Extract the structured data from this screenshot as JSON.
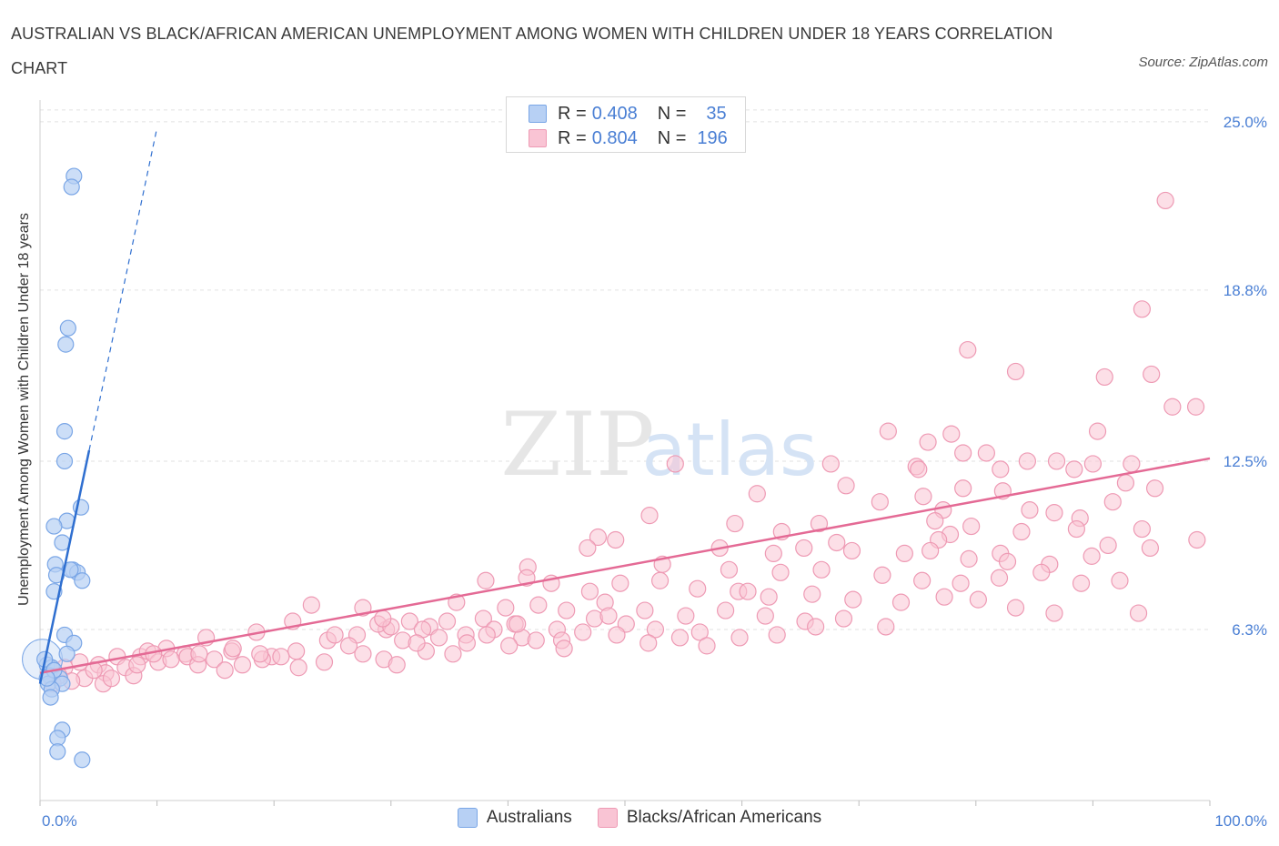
{
  "title": "AUSTRALIAN VS BLACK/AFRICAN AMERICAN UNEMPLOYMENT AMONG WOMEN WITH CHILDREN UNDER 18 YEARS CORRELATION CHART",
  "source": "Source: ZipAtlas.com",
  "watermark": {
    "zip": "ZIP",
    "atlas": "atlas"
  },
  "colors": {
    "blue_fill": "#b7d0f4",
    "blue_stroke": "#7aa6e6",
    "blue_line": "#2f6fd0",
    "pink_fill": "#f9c4d4",
    "pink_stroke": "#ee9ab4",
    "pink_line": "#e46a95",
    "axis_label": "#4a7fd4",
    "grid": "#e2e2e2"
  },
  "legend": {
    "australians": {
      "r_key": "R =",
      "r_value": "0.408",
      "n_key": "N =",
      "n_value": "35"
    },
    "blacks": {
      "r_key": "R =",
      "r_value": "0.804",
      "n_key": "N =",
      "n_value": "196"
    }
  },
  "chart_data": {
    "type": "scatter",
    "xlabel": "",
    "ylabel": "Unemployment Among Women with Children Under 18 years",
    "xlim": [
      0,
      100
    ],
    "ylim": [
      0,
      25.8
    ],
    "y_ticks": [
      {
        "value": 6.3,
        "label": "6.3%"
      },
      {
        "value": 12.5,
        "label": "12.5%"
      },
      {
        "value": 18.8,
        "label": "18.8%"
      },
      {
        "value": 25.0,
        "label": "25.0%"
      }
    ],
    "x_tick_labels": {
      "min": "0.0%",
      "max": "100.0%"
    },
    "grid": true,
    "legend_position": "bottom-center",
    "series": [
      {
        "name": "Australians",
        "trend": {
          "x0": 0.0,
          "y0": 4.3,
          "x1": 4.2,
          "y1": 12.9,
          "dashed_to_x": 10.0
        },
        "points": [
          [
            2.9,
            23.0
          ],
          [
            2.7,
            22.6
          ],
          [
            2.4,
            17.4
          ],
          [
            2.2,
            16.8
          ],
          [
            2.1,
            13.6
          ],
          [
            2.1,
            12.5
          ],
          [
            3.5,
            10.8
          ],
          [
            2.3,
            10.3
          ],
          [
            1.2,
            10.1
          ],
          [
            1.9,
            9.5
          ],
          [
            1.3,
            8.7
          ],
          [
            2.8,
            8.5
          ],
          [
            3.2,
            8.4
          ],
          [
            1.4,
            8.3
          ],
          [
            3.6,
            8.1
          ],
          [
            1.2,
            7.7
          ],
          [
            2.1,
            6.1
          ],
          [
            2.9,
            5.8
          ],
          [
            2.3,
            5.4
          ],
          [
            0.6,
            5.0
          ],
          [
            1.0,
            4.9
          ],
          [
            0.8,
            4.6
          ],
          [
            1.7,
            4.5
          ],
          [
            0.7,
            4.3
          ],
          [
            1.9,
            4.3
          ],
          [
            1.0,
            4.1
          ],
          [
            0.9,
            3.8
          ],
          [
            1.9,
            2.6
          ],
          [
            1.5,
            2.3
          ],
          [
            1.5,
            1.8
          ],
          [
            3.6,
            1.5
          ],
          [
            0.4,
            5.2
          ],
          [
            1.2,
            4.8
          ],
          [
            2.6,
            8.5
          ],
          [
            0.6,
            4.5
          ]
        ]
      },
      {
        "name": "Blacks/African Americans",
        "trend": {
          "x0": 0.0,
          "y0": 4.7,
          "x1": 100.0,
          "y1": 12.6
        },
        "points": [
          [
            96.2,
            22.1
          ],
          [
            94.2,
            18.1
          ],
          [
            79.3,
            16.6
          ],
          [
            83.4,
            15.8
          ],
          [
            91.0,
            15.6
          ],
          [
            95.0,
            15.7
          ],
          [
            96.8,
            14.5
          ],
          [
            98.8,
            14.5
          ],
          [
            72.5,
            13.6
          ],
          [
            77.9,
            13.5
          ],
          [
            90.4,
            13.6
          ],
          [
            75.9,
            13.2
          ],
          [
            78.9,
            12.8
          ],
          [
            80.9,
            12.8
          ],
          [
            84.4,
            12.5
          ],
          [
            86.9,
            12.5
          ],
          [
            67.6,
            12.4
          ],
          [
            90.0,
            12.4
          ],
          [
            74.9,
            12.3
          ],
          [
            82.1,
            12.2
          ],
          [
            88.4,
            12.2
          ],
          [
            93.3,
            12.4
          ],
          [
            54.3,
            12.4
          ],
          [
            75.1,
            12.2
          ],
          [
            68.9,
            11.6
          ],
          [
            78.9,
            11.5
          ],
          [
            75.5,
            11.2
          ],
          [
            82.3,
            11.4
          ],
          [
            92.8,
            11.7
          ],
          [
            95.3,
            11.5
          ],
          [
            91.7,
            11.0
          ],
          [
            61.3,
            11.3
          ],
          [
            71.8,
            11.0
          ],
          [
            77.2,
            10.7
          ],
          [
            84.6,
            10.7
          ],
          [
            86.7,
            10.6
          ],
          [
            88.9,
            10.4
          ],
          [
            52.1,
            10.5
          ],
          [
            59.4,
            10.2
          ],
          [
            66.6,
            10.2
          ],
          [
            76.5,
            10.3
          ],
          [
            79.6,
            10.1
          ],
          [
            83.9,
            9.9
          ],
          [
            88.6,
            10.0
          ],
          [
            94.2,
            10.0
          ],
          [
            47.7,
            9.7
          ],
          [
            63.4,
            9.9
          ],
          [
            77.8,
            9.8
          ],
          [
            46.8,
            9.3
          ],
          [
            49.2,
            9.6
          ],
          [
            58.1,
            9.3
          ],
          [
            68.1,
            9.5
          ],
          [
            76.8,
            9.6
          ],
          [
            82.1,
            9.1
          ],
          [
            91.3,
            9.4
          ],
          [
            94.9,
            9.3
          ],
          [
            98.9,
            9.6
          ],
          [
            62.7,
            9.1
          ],
          [
            65.3,
            9.3
          ],
          [
            69.4,
            9.2
          ],
          [
            73.9,
            9.1
          ],
          [
            76.1,
            9.2
          ],
          [
            79.4,
            8.9
          ],
          [
            82.7,
            8.8
          ],
          [
            86.3,
            8.7
          ],
          [
            89.9,
            9.0
          ],
          [
            41.7,
            8.6
          ],
          [
            53.2,
            8.7
          ],
          [
            58.9,
            8.5
          ],
          [
            63.3,
            8.4
          ],
          [
            66.8,
            8.5
          ],
          [
            72.0,
            8.3
          ],
          [
            75.4,
            8.1
          ],
          [
            78.7,
            8.0
          ],
          [
            82.0,
            8.2
          ],
          [
            85.6,
            8.4
          ],
          [
            89.0,
            8.0
          ],
          [
            92.3,
            8.1
          ],
          [
            38.1,
            8.1
          ],
          [
            41.6,
            8.2
          ],
          [
            43.7,
            8.0
          ],
          [
            47.0,
            7.7
          ],
          [
            49.6,
            8.0
          ],
          [
            53.0,
            8.1
          ],
          [
            56.2,
            7.8
          ],
          [
            59.7,
            7.7
          ],
          [
            62.3,
            7.5
          ],
          [
            66.0,
            7.6
          ],
          [
            69.5,
            7.4
          ],
          [
            73.6,
            7.3
          ],
          [
            77.3,
            7.5
          ],
          [
            80.2,
            7.4
          ],
          [
            83.4,
            7.1
          ],
          [
            86.7,
            6.9
          ],
          [
            93.9,
            6.9
          ],
          [
            35.6,
            7.3
          ],
          [
            39.8,
            7.1
          ],
          [
            42.6,
            7.2
          ],
          [
            45.0,
            7.0
          ],
          [
            48.3,
            7.3
          ],
          [
            51.7,
            7.0
          ],
          [
            55.2,
            6.8
          ],
          [
            58.6,
            7.0
          ],
          [
            62.0,
            6.8
          ],
          [
            65.4,
            6.6
          ],
          [
            68.7,
            6.7
          ],
          [
            72.3,
            6.4
          ],
          [
            34.8,
            6.6
          ],
          [
            37.9,
            6.7
          ],
          [
            40.6,
            6.5
          ],
          [
            44.2,
            6.3
          ],
          [
            47.4,
            6.7
          ],
          [
            50.1,
            6.5
          ],
          [
            52.6,
            6.3
          ],
          [
            56.4,
            6.2
          ],
          [
            59.8,
            6.0
          ],
          [
            63.0,
            6.1
          ],
          [
            66.3,
            6.4
          ],
          [
            29.6,
            6.3
          ],
          [
            31.6,
            6.6
          ],
          [
            33.3,
            6.4
          ],
          [
            36.4,
            6.1
          ],
          [
            38.8,
            6.3
          ],
          [
            41.2,
            6.0
          ],
          [
            44.6,
            5.9
          ],
          [
            46.4,
            6.2
          ],
          [
            49.3,
            6.1
          ],
          [
            52.0,
            5.8
          ],
          [
            54.7,
            6.0
          ],
          [
            57.0,
            5.7
          ],
          [
            27.1,
            6.1
          ],
          [
            28.9,
            6.5
          ],
          [
            31.0,
            5.9
          ],
          [
            32.7,
            6.3
          ],
          [
            34.1,
            6.0
          ],
          [
            36.5,
            5.8
          ],
          [
            38.2,
            6.1
          ],
          [
            40.1,
            5.7
          ],
          [
            42.4,
            5.9
          ],
          [
            44.8,
            5.6
          ],
          [
            23.2,
            7.2
          ],
          [
            27.6,
            7.1
          ],
          [
            30.0,
            6.4
          ],
          [
            33.0,
            5.5
          ],
          [
            35.3,
            5.4
          ],
          [
            18.5,
            6.2
          ],
          [
            21.6,
            6.6
          ],
          [
            24.6,
            5.9
          ],
          [
            26.4,
            5.7
          ],
          [
            29.4,
            5.2
          ],
          [
            32.2,
            5.8
          ],
          [
            14.2,
            6.0
          ],
          [
            16.4,
            5.5
          ],
          [
            19.8,
            5.3
          ],
          [
            21.9,
            5.5
          ],
          [
            24.3,
            5.1
          ],
          [
            27.6,
            5.4
          ],
          [
            30.5,
            5.0
          ],
          [
            12.4,
            5.4
          ],
          [
            14.9,
            5.2
          ],
          [
            17.3,
            5.0
          ],
          [
            19.0,
            5.2
          ],
          [
            22.1,
            4.9
          ],
          [
            10.8,
            5.6
          ],
          [
            12.6,
            5.3
          ],
          [
            13.5,
            5.0
          ],
          [
            15.8,
            4.8
          ],
          [
            8.6,
            5.3
          ],
          [
            9.2,
            5.5
          ],
          [
            10.1,
            5.1
          ],
          [
            6.6,
            5.3
          ],
          [
            7.3,
            4.9
          ],
          [
            8.0,
            4.6
          ],
          [
            5.0,
            5.0
          ],
          [
            5.6,
            4.7
          ],
          [
            3.4,
            5.1
          ],
          [
            3.8,
            4.5
          ],
          [
            4.6,
            4.8
          ],
          [
            2.1,
            4.9
          ],
          [
            2.7,
            4.4
          ],
          [
            1.6,
            4.6
          ],
          [
            1.1,
            4.3
          ],
          [
            5.4,
            4.3
          ],
          [
            20.6,
            5.3
          ],
          [
            25.2,
            6.1
          ],
          [
            13.6,
            5.4
          ],
          [
            11.2,
            5.2
          ],
          [
            16.5,
            5.6
          ],
          [
            18.8,
            5.4
          ],
          [
            9.7,
            5.4
          ],
          [
            8.3,
            5.0
          ],
          [
            6.1,
            4.5
          ],
          [
            29.3,
            6.7
          ],
          [
            40.8,
            6.5
          ],
          [
            48.6,
            6.8
          ],
          [
            60.5,
            7.7
          ]
        ]
      }
    ]
  },
  "bottom_legend": {
    "australians": "Australians",
    "blacks": "Blacks/African Americans"
  }
}
